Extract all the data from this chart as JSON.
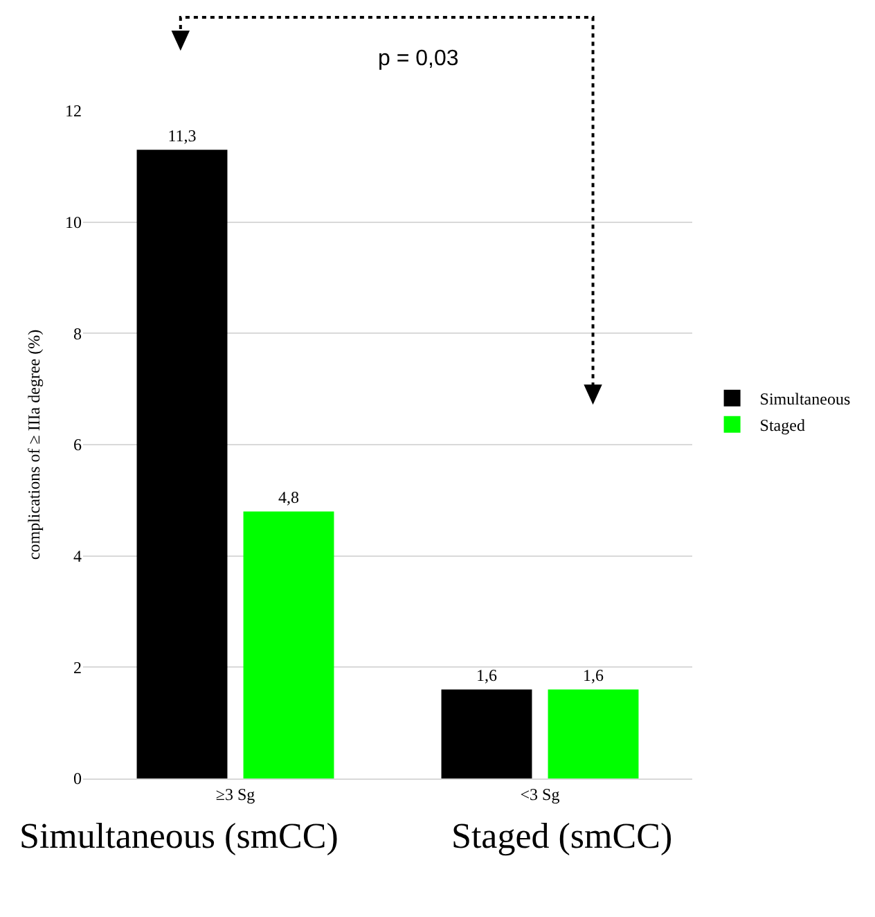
{
  "chart_data": {
    "type": "bar",
    "ylabel": "complications of ≥ IIIa degree (%)",
    "categories": [
      "≥3 Sg",
      "<3 Sg"
    ],
    "series": [
      {
        "name": "Simultaneous",
        "color": "#000000",
        "values": [
          11.3,
          1.6
        ],
        "value_labels": [
          "11,3",
          "1,6"
        ]
      },
      {
        "name": "Staged",
        "color": "#00ff00",
        "values": [
          4.8,
          1.6
        ],
        "value_labels": [
          "4,8",
          "1,6"
        ]
      }
    ],
    "ylim": [
      0,
      12
    ],
    "yticks": [
      0,
      2,
      4,
      6,
      8,
      10,
      12
    ],
    "grid": "y",
    "legend": "right",
    "annotations": [
      "p = 0,03",
      "Simultaneous (smCC)",
      "Staged (smCC)"
    ]
  }
}
